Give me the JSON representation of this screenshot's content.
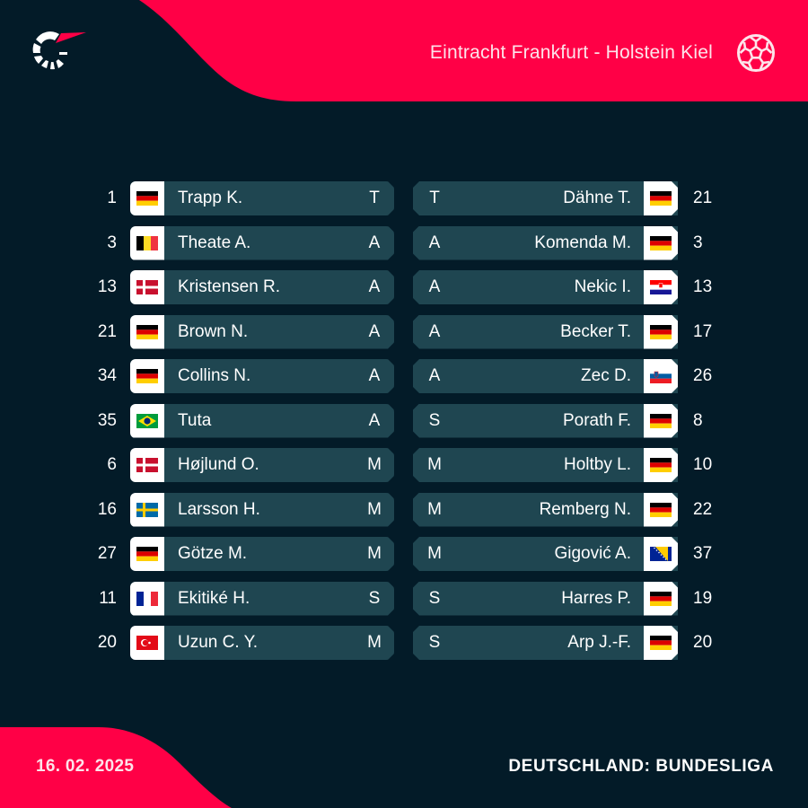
{
  "header": {
    "match_title": "Eintracht Frankfurt - Holstein Kiel",
    "logo_icon": "flashscore-logo-icon",
    "sport_icon": "football-icon"
  },
  "colors": {
    "background": "#031b28",
    "accent": "#ff0046",
    "row": "#1f4651",
    "flag_cell": "#ffffff"
  },
  "home": {
    "team": "Eintracht Frankfurt",
    "players": [
      {
        "number": "1",
        "name": "Trapp K.",
        "position": "T",
        "flag": "de"
      },
      {
        "number": "3",
        "name": "Theate A.",
        "position": "A",
        "flag": "be"
      },
      {
        "number": "13",
        "name": "Kristensen R.",
        "position": "A",
        "flag": "dk"
      },
      {
        "number": "21",
        "name": "Brown N.",
        "position": "A",
        "flag": "de"
      },
      {
        "number": "34",
        "name": "Collins N.",
        "position": "A",
        "flag": "de"
      },
      {
        "number": "35",
        "name": "Tuta",
        "position": "A",
        "flag": "br"
      },
      {
        "number": "6",
        "name": "Højlund O.",
        "position": "M",
        "flag": "dk"
      },
      {
        "number": "16",
        "name": "Larsson H.",
        "position": "M",
        "flag": "se"
      },
      {
        "number": "27",
        "name": "Götze M.",
        "position": "M",
        "flag": "de"
      },
      {
        "number": "11",
        "name": "Ekitiké H.",
        "position": "S",
        "flag": "fr"
      },
      {
        "number": "20",
        "name": "Uzun C. Y.",
        "position": "M",
        "flag": "tr"
      }
    ]
  },
  "away": {
    "team": "Holstein Kiel",
    "players": [
      {
        "number": "21",
        "name": "Dähne T.",
        "position": "T",
        "flag": "de"
      },
      {
        "number": "3",
        "name": "Komenda M.",
        "position": "A",
        "flag": "de"
      },
      {
        "number": "13",
        "name": "Nekic I.",
        "position": "A",
        "flag": "hr"
      },
      {
        "number": "17",
        "name": "Becker T.",
        "position": "A",
        "flag": "de"
      },
      {
        "number": "26",
        "name": "Zec D.",
        "position": "A",
        "flag": "si"
      },
      {
        "number": "8",
        "name": "Porath F.",
        "position": "S",
        "flag": "de"
      },
      {
        "number": "10",
        "name": "Holtby L.",
        "position": "M",
        "flag": "de"
      },
      {
        "number": "22",
        "name": "Remberg N.",
        "position": "M",
        "flag": "de"
      },
      {
        "number": "37",
        "name": "Gigović A.",
        "position": "M",
        "flag": "ba"
      },
      {
        "number": "19",
        "name": "Harres P.",
        "position": "S",
        "flag": "de"
      },
      {
        "number": "20",
        "name": "Arp J.-F.",
        "position": "S",
        "flag": "de"
      }
    ]
  },
  "footer": {
    "date": "16. 02. 2025",
    "league": "DEUTSCHLAND: BUNDESLIGA"
  }
}
